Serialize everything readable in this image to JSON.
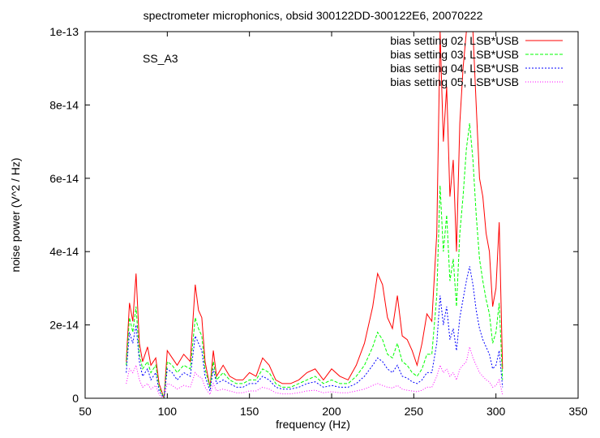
{
  "chart_data": {
    "type": "line",
    "title": "spectrometer microphonics, obsid 300122DD-300122E6, 20070222",
    "annotation": "SS_A3",
    "xlabel": "frequency (Hz)",
    "ylabel": "noise power (V^2 / Hz)",
    "xlim": [
      50,
      350
    ],
    "ylim": [
      0,
      1e-13
    ],
    "xticks": [
      50,
      100,
      150,
      200,
      250,
      300,
      350
    ],
    "xtick_labels": [
      "50",
      "100",
      "150",
      "200",
      "250",
      "300",
      "350"
    ],
    "yticks": [
      0,
      2e-14,
      4e-14,
      6e-14,
      8e-14,
      1e-13
    ],
    "ytick_labels": [
      "0",
      "2e-14",
      "4e-14",
      "6e-14",
      "8e-14",
      "1e-13"
    ],
    "legend_position": "top-right",
    "grid": false,
    "series": [
      {
        "name": "bias setting 02, LSB*USB",
        "color": "#ff0000",
        "dash": "solid",
        "x": [
          75,
          77,
          79,
          81,
          83,
          85,
          88,
          90,
          93,
          95,
          98,
          100,
          103,
          106,
          110,
          114,
          117,
          119,
          121,
          123,
          126,
          128,
          130,
          134,
          138,
          142,
          146,
          150,
          154,
          158,
          162,
          166,
          170,
          175,
          180,
          185,
          190,
          195,
          200,
          205,
          210,
          215,
          220,
          225,
          228,
          231,
          234,
          237,
          240,
          243,
          246,
          249,
          252,
          255,
          258,
          261,
          264,
          266,
          268,
          270,
          272,
          274,
          276,
          278,
          280,
          282,
          284,
          286,
          288,
          290,
          292,
          294,
          296,
          298,
          300,
          302,
          304
        ],
        "y": [
          1e-14,
          2.6e-14,
          2.1e-14,
          3.4e-14,
          1.5e-14,
          1e-14,
          1.4e-14,
          9e-15,
          1.1e-14,
          4e-15,
          0.0,
          1.3e-14,
          1.1e-14,
          9e-15,
          1.2e-14,
          1e-14,
          3.1e-14,
          2.4e-14,
          2.2e-14,
          1e-14,
          3e-15,
          1.3e-14,
          6e-15,
          9e-15,
          6e-15,
          5e-15,
          5e-15,
          7e-15,
          6e-15,
          1.1e-14,
          9e-15,
          5e-15,
          4e-15,
          4e-15,
          5e-15,
          7e-15,
          8e-15,
          5e-15,
          8e-15,
          6e-15,
          5e-15,
          9e-15,
          1.5e-14,
          2.5e-14,
          3.4e-14,
          3.1e-14,
          2.2e-14,
          1.9e-14,
          2.8e-14,
          1.7e-14,
          1.6e-14,
          1.3e-14,
          9e-15,
          1.5e-14,
          2.3e-14,
          2.1e-14,
          4.5e-14,
          1e-13,
          7e-14,
          8.5e-14,
          5.5e-14,
          6.5e-14,
          4e-14,
          7.5e-14,
          9e-14,
          1e-13,
          1e-13,
          1e-13,
          8e-14,
          6e-14,
          5.5e-14,
          4.5e-14,
          4e-14,
          2.5e-14,
          3e-14,
          4.8e-14,
          8e-15
        ]
      },
      {
        "name": "bias setting 03, LSB*USB",
        "color": "#00ff00",
        "dash": "dashed",
        "x": [
          75,
          77,
          79,
          81,
          83,
          85,
          88,
          90,
          93,
          95,
          98,
          100,
          103,
          106,
          110,
          114,
          117,
          119,
          121,
          123,
          126,
          128,
          130,
          134,
          138,
          142,
          146,
          150,
          154,
          158,
          162,
          166,
          170,
          175,
          180,
          185,
          190,
          195,
          200,
          205,
          210,
          215,
          220,
          225,
          228,
          231,
          234,
          237,
          240,
          243,
          246,
          249,
          252,
          255,
          258,
          261,
          264,
          266,
          268,
          270,
          272,
          274,
          276,
          278,
          280,
          282,
          284,
          286,
          288,
          290,
          292,
          294,
          296,
          298,
          300,
          302,
          304
        ],
        "y": [
          9e-15,
          2.2e-14,
          1.8e-14,
          2.5e-14,
          1.2e-14,
          8e-15,
          1e-14,
          7e-15,
          9e-15,
          3e-15,
          0.0,
          1e-14,
          9e-15,
          7e-15,
          9e-15,
          8e-15,
          2.2e-14,
          1.9e-14,
          1.7e-14,
          8e-15,
          3e-15,
          1e-14,
          5e-15,
          7e-15,
          5e-15,
          4e-15,
          4e-15,
          5e-15,
          5e-15,
          8e-15,
          7e-15,
          4e-15,
          3e-15,
          3e-15,
          4e-15,
          5e-15,
          6e-15,
          4e-15,
          5e-15,
          4e-15,
          4e-15,
          6e-15,
          9e-15,
          1.4e-14,
          1.8e-14,
          1.6e-14,
          1.2e-14,
          1.1e-14,
          1.5e-14,
          1e-14,
          9e-15,
          7e-15,
          6e-15,
          8e-15,
          1.2e-14,
          1.2e-14,
          2.8e-14,
          5.8e-14,
          4e-14,
          5e-14,
          3.2e-14,
          3.8e-14,
          2.5e-14,
          4.5e-14,
          5.5e-14,
          6.8e-14,
          7.5e-14,
          6.5e-14,
          5e-14,
          3.8e-14,
          3.2e-14,
          2.7e-14,
          2.3e-14,
          1.5e-14,
          1.8e-14,
          2.6e-14,
          5e-15
        ]
      },
      {
        "name": "bias setting 04, LSB*USB",
        "color": "#0000ff",
        "dash": "dotted-dense",
        "x": [
          75,
          77,
          79,
          81,
          83,
          85,
          88,
          90,
          93,
          95,
          98,
          100,
          103,
          106,
          110,
          114,
          117,
          119,
          121,
          123,
          126,
          128,
          130,
          134,
          138,
          142,
          146,
          150,
          154,
          158,
          162,
          166,
          170,
          175,
          180,
          185,
          190,
          195,
          200,
          205,
          210,
          215,
          220,
          225,
          228,
          231,
          234,
          237,
          240,
          243,
          246,
          249,
          252,
          255,
          258,
          261,
          264,
          266,
          268,
          270,
          272,
          274,
          276,
          278,
          280,
          282,
          284,
          286,
          288,
          290,
          292,
          294,
          296,
          298,
          300,
          302,
          304
        ],
        "y": [
          7e-15,
          1.8e-14,
          1.5e-14,
          2e-14,
          1e-14,
          6e-15,
          8e-15,
          5e-15,
          7e-15,
          2e-15,
          0.0,
          8e-15,
          7e-15,
          5e-15,
          7e-15,
          6e-15,
          1.7e-14,
          1.5e-14,
          1.3e-14,
          6e-15,
          2e-15,
          8e-15,
          4e-15,
          5e-15,
          4e-15,
          3e-15,
          3e-15,
          4e-15,
          4e-15,
          6e-15,
          5e-15,
          3e-15,
          2.5e-15,
          2.5e-15,
          3e-15,
          4e-15,
          4.5e-15,
          3e-15,
          3.5e-15,
          3e-15,
          3e-15,
          4e-15,
          6e-15,
          9e-15,
          1.1e-14,
          1e-14,
          8e-15,
          7e-15,
          9e-15,
          6e-15,
          5.5e-15,
          4.5e-15,
          4e-15,
          5e-15,
          7e-15,
          7e-15,
          1.5e-14,
          2.8e-14,
          2e-14,
          2.5e-14,
          1.6e-14,
          1.9e-14,
          1.3e-14,
          2.2e-14,
          2.7e-14,
          3.2e-14,
          3.6e-14,
          3.1e-14,
          2.4e-14,
          1.9e-14,
          1.6e-14,
          1.4e-14,
          1.2e-14,
          8e-15,
          9e-15,
          1.3e-14,
          3e-15
        ]
      },
      {
        "name": "bias setting 05, LSB*USB",
        "color": "#ff00ff",
        "dash": "dotted",
        "x": [
          75,
          77,
          79,
          81,
          83,
          85,
          88,
          90,
          93,
          95,
          98,
          100,
          103,
          106,
          110,
          114,
          117,
          119,
          121,
          123,
          126,
          128,
          130,
          134,
          138,
          142,
          146,
          150,
          154,
          158,
          162,
          166,
          170,
          175,
          180,
          185,
          190,
          195,
          200,
          205,
          210,
          215,
          220,
          225,
          228,
          231,
          234,
          237,
          240,
          243,
          246,
          249,
          252,
          255,
          258,
          261,
          264,
          266,
          268,
          270,
          272,
          274,
          276,
          278,
          280,
          282,
          284,
          286,
          288,
          290,
          292,
          294,
          296,
          298,
          300,
          302,
          304
        ],
        "y": [
          4e-15,
          8e-15,
          7e-15,
          9e-15,
          5e-15,
          3e-15,
          4e-15,
          2.5e-15,
          3.5e-15,
          1e-15,
          0.0,
          4e-15,
          3.5e-15,
          2.5e-15,
          3.5e-15,
          3e-15,
          7e-15,
          6e-15,
          5.5e-15,
          3e-15,
          1e-15,
          4e-15,
          2e-15,
          2.5e-15,
          2e-15,
          1.5e-15,
          1.5e-15,
          2e-15,
          2e-15,
          3e-15,
          2.5e-15,
          1.5e-15,
          1.2e-15,
          1.2e-15,
          1.5e-15,
          2e-15,
          2.2e-15,
          1.5e-15,
          1.8e-15,
          1.5e-15,
          1.5e-15,
          2e-15,
          2.5e-15,
          3.5e-15,
          4e-15,
          3.5e-15,
          3e-15,
          2.8e-15,
          3.5e-15,
          2.5e-15,
          2.2e-15,
          2e-15,
          1.8e-15,
          2.2e-15,
          3e-15,
          3e-15,
          6e-15,
          9e-15,
          7e-15,
          8e-15,
          6e-15,
          7e-15,
          5e-15,
          8e-15,
          9e-15,
          1e-14,
          1.4e-14,
          1.1e-14,
          9e-15,
          7e-15,
          6e-15,
          5e-15,
          4.5e-15,
          3e-15,
          3.5e-15,
          5e-15,
          1e-15
        ]
      }
    ]
  }
}
